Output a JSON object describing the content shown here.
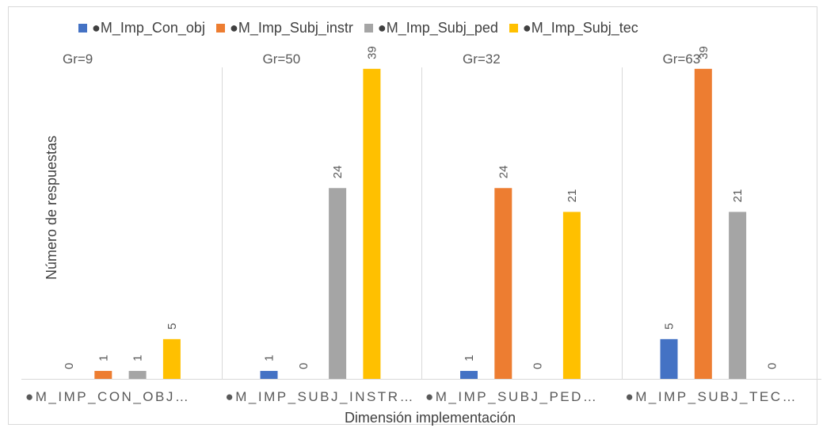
{
  "chart_data": {
    "type": "bar",
    "title": "",
    "xlabel": "Dimensión implementación",
    "ylabel": "Número de respuestas",
    "ylim": [
      0,
      42
    ],
    "grid": false,
    "legend_position": "top",
    "categories": [
      "●M_IMP_CON_OBJ…",
      "●M_IMP_SUBJ_INSTR…",
      "●M_IMP_SUBJ_PED…",
      "●M_IMP_SUBJ_TEC…"
    ],
    "group_labels": [
      "Gr=9",
      "Gr=50",
      "Gr=32",
      "Gr=63"
    ],
    "series": [
      {
        "name": "●M_Imp_Con_obj",
        "color": "#4472C4",
        "values": [
          0,
          1,
          1,
          5
        ]
      },
      {
        "name": "●M_Imp_Subj_instr",
        "color": "#ED7D31",
        "values": [
          1,
          0,
          24,
          39
        ]
      },
      {
        "name": "●M_Imp_Subj_ped",
        "color": "#A5A5A5",
        "values": [
          1,
          24,
          0,
          21
        ]
      },
      {
        "name": "●M_Imp_Subj_tec",
        "color": "#FFC000",
        "values": [
          5,
          39,
          21,
          0
        ]
      }
    ]
  }
}
